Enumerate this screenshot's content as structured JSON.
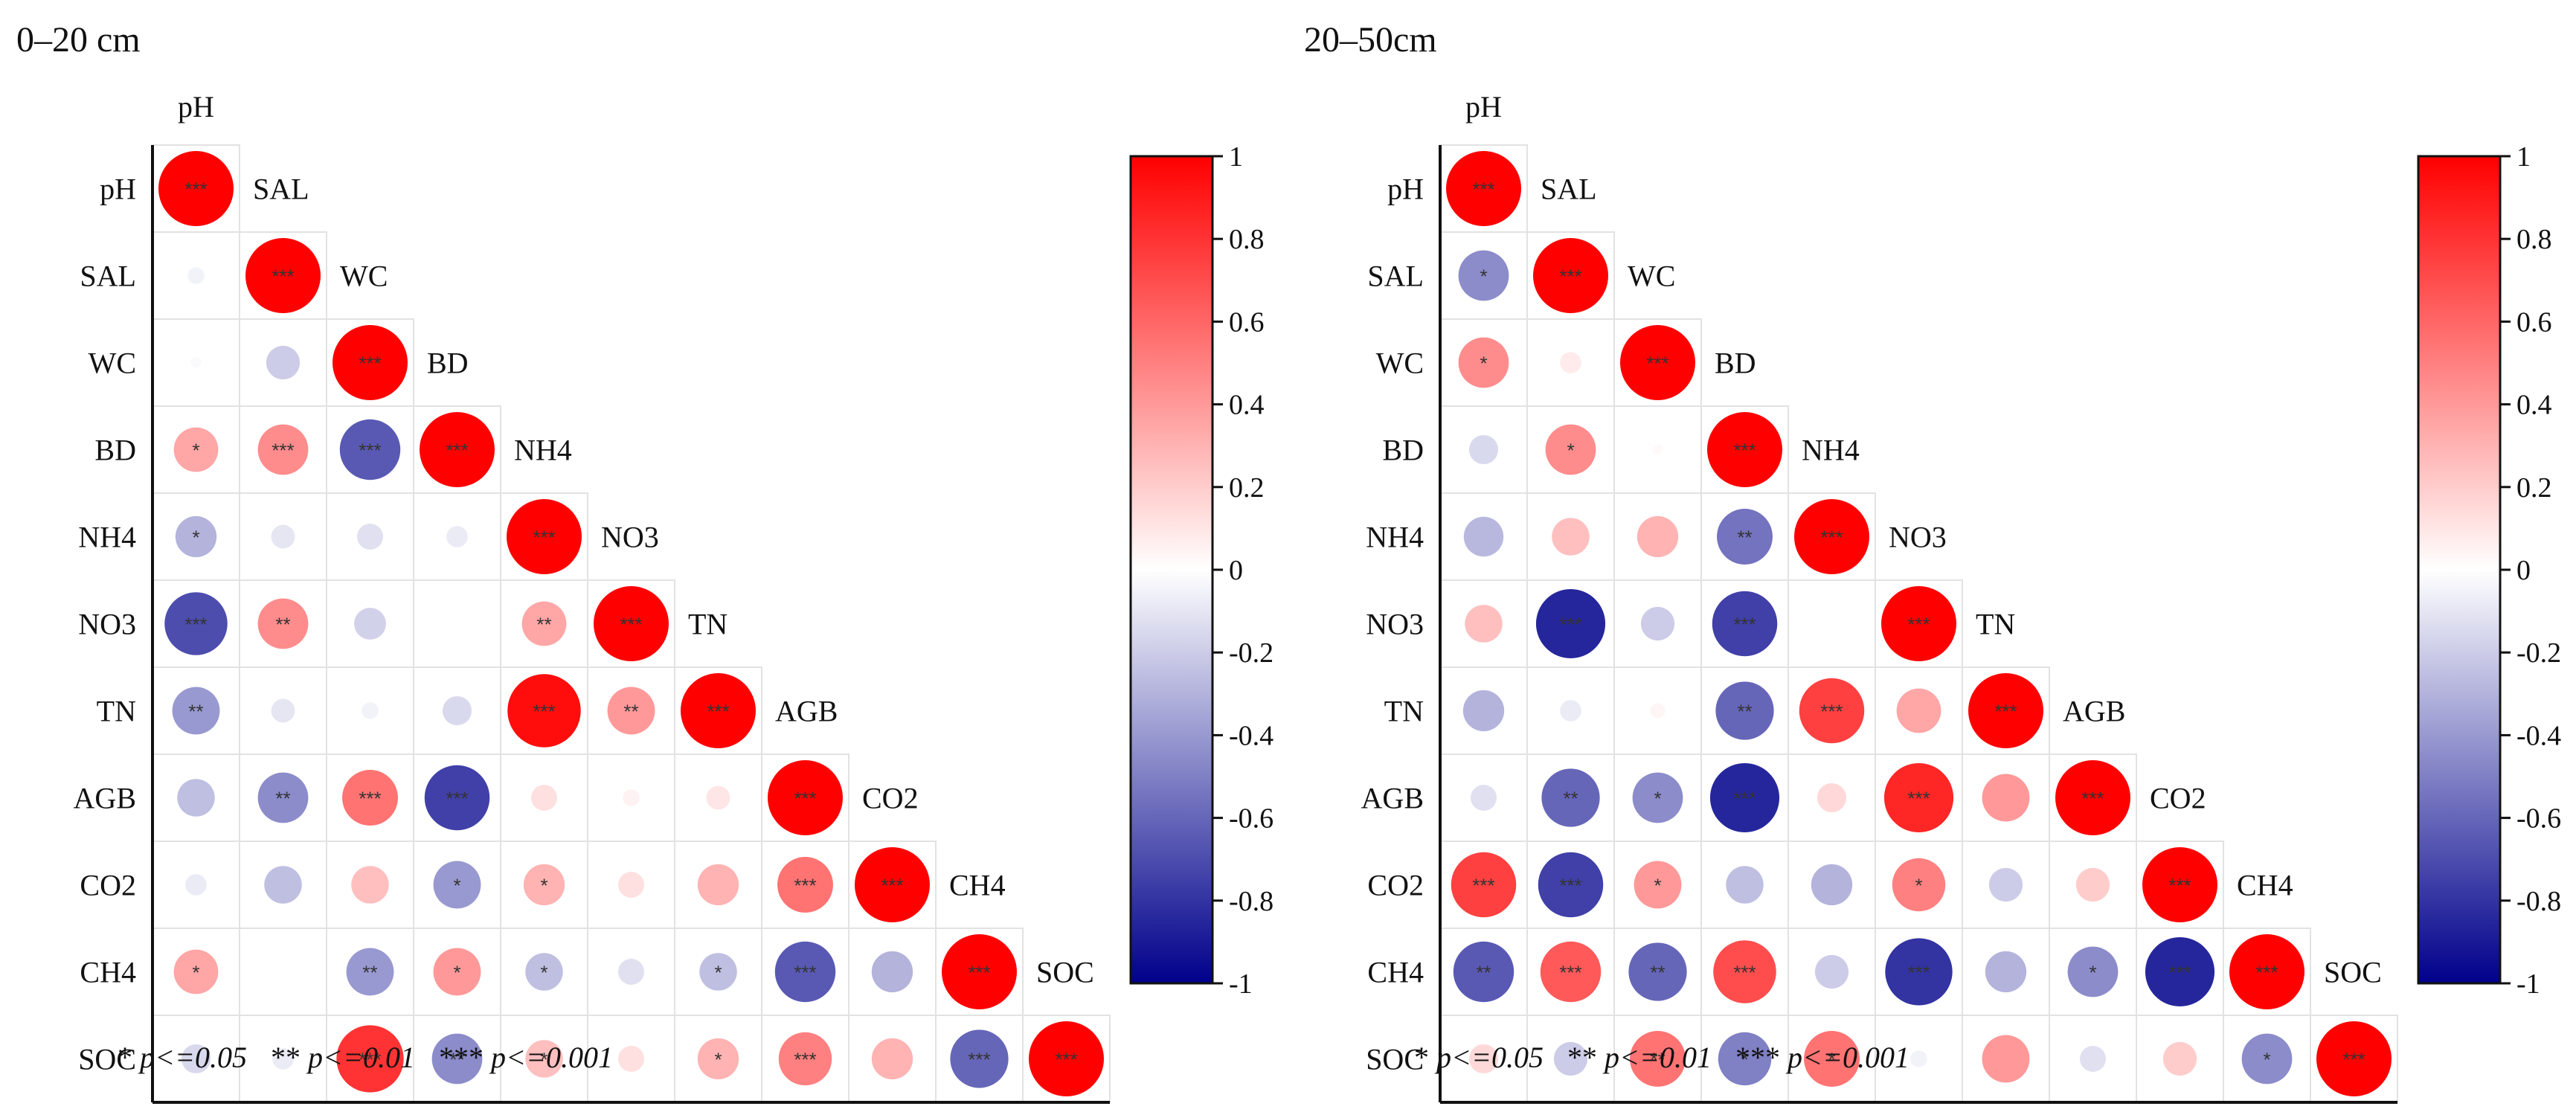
{
  "chart_data": [
    {
      "type": "heatmap",
      "style": "correlation-circles-lower-triangle",
      "title": "0–20 cm",
      "variables": [
        "pH",
        "SAL",
        "WC",
        "BD",
        "NH4",
        "NO3",
        "TN",
        "AGB",
        "CO2",
        "CH4",
        "SOC"
      ],
      "color_scale": {
        "min": -1,
        "max": 1,
        "ticks": [
          "1",
          "0.8",
          "0.6",
          "0.4",
          "0.2",
          "0",
          "-0.2",
          "-0.4",
          "-0.6",
          "-0.8",
          "-1"
        ]
      },
      "matrix": [
        [
          1.0
        ],
        [
          -0.05,
          1.0
        ],
        [
          -0.02,
          -0.2,
          1.0
        ],
        [
          0.35,
          0.45,
          -0.65,
          1.0
        ],
        [
          -0.3,
          -0.1,
          -0.12,
          -0.08,
          1.0
        ],
        [
          -0.7,
          0.45,
          -0.18,
          0.0,
          0.35,
          1.0
        ],
        [
          -0.4,
          -0.1,
          -0.05,
          -0.15,
          0.95,
          0.4,
          1.0
        ],
        [
          -0.25,
          -0.45,
          0.55,
          -0.75,
          0.12,
          0.05,
          0.1,
          1.0
        ],
        [
          -0.08,
          -0.25,
          0.25,
          -0.4,
          0.3,
          0.12,
          0.3,
          0.55,
          1.0
        ],
        [
          0.35,
          0.0,
          -0.4,
          0.4,
          -0.25,
          -0.12,
          -0.25,
          -0.65,
          -0.3,
          1.0
        ],
        [
          -0.15,
          -0.08,
          0.8,
          -0.45,
          0.25,
          0.12,
          0.3,
          0.5,
          0.3,
          -0.6,
          1.0
        ]
      ],
      "significance": [
        [
          "***"
        ],
        [
          "",
          "***"
        ],
        [
          "",
          "",
          "***"
        ],
        [
          "*",
          "***",
          "***",
          "***"
        ],
        [
          "*",
          "",
          "",
          "",
          "***"
        ],
        [
          "***",
          "**",
          "",
          "",
          "**",
          "***"
        ],
        [
          "**",
          "",
          "",
          "",
          "***",
          "**",
          "***"
        ],
        [
          "",
          "**",
          "***",
          "***",
          "",
          "",
          "",
          "***"
        ],
        [
          "",
          "",
          "",
          "*",
          "*",
          "",
          "",
          "***",
          "***"
        ],
        [
          "*",
          "",
          "**",
          "*",
          "*",
          "",
          "*",
          "***",
          "",
          "***"
        ],
        [
          "",
          "",
          "***",
          "**",
          "*",
          "",
          "*",
          "***",
          "",
          "***",
          "***"
        ]
      ],
      "footnote": {
        "s1": "*",
        "t1": "p<=0.05",
        "s2": "**",
        "t2": "p<=0.01",
        "s3": "***",
        "t3": "p<=0.001"
      }
    },
    {
      "type": "heatmap",
      "style": "correlation-circles-lower-triangle",
      "title": "20–50cm",
      "variables": [
        "pH",
        "SAL",
        "WC",
        "BD",
        "NH4",
        "NO3",
        "TN",
        "AGB",
        "CO2",
        "CH4",
        "SOC"
      ],
      "color_scale": {
        "min": -1,
        "max": 1,
        "ticks": [
          "1",
          "0.8",
          "0.6",
          "0.4",
          "0.2",
          "0",
          "-0.2",
          "-0.4",
          "-0.6",
          "-0.8",
          "-1"
        ]
      },
      "matrix": [
        [
          1.0
        ],
        [
          -0.45,
          1.0
        ],
        [
          0.45,
          0.08,
          1.0
        ],
        [
          -0.15,
          0.45,
          0.02,
          1.0
        ],
        [
          -0.28,
          0.25,
          0.3,
          -0.55,
          1.0
        ],
        [
          0.25,
          -0.85,
          -0.2,
          -0.75,
          0.0,
          1.0
        ],
        [
          -0.3,
          -0.08,
          0.04,
          -0.6,
          0.75,
          0.35,
          1.0
        ],
        [
          -0.12,
          -0.6,
          -0.45,
          -0.85,
          0.15,
          0.85,
          0.4,
          1.0
        ],
        [
          0.75,
          -0.75,
          0.4,
          -0.25,
          -0.3,
          0.5,
          -0.2,
          0.2,
          1.0
        ],
        [
          -0.65,
          0.65,
          -0.6,
          0.7,
          -0.2,
          -0.8,
          -0.3,
          -0.45,
          -0.85,
          1.0
        ],
        [
          0.15,
          -0.2,
          0.55,
          -0.5,
          0.55,
          -0.05,
          0.4,
          -0.12,
          0.2,
          -0.45,
          1.0
        ]
      ],
      "significance": [
        [
          "***"
        ],
        [
          "*",
          "***"
        ],
        [
          "*",
          "",
          "***"
        ],
        [
          "",
          "*",
          "",
          "***"
        ],
        [
          "",
          "",
          "",
          "**",
          "***"
        ],
        [
          "",
          "***",
          "",
          "***",
          "",
          "***"
        ],
        [
          "",
          "",
          "",
          "**",
          "***",
          "",
          "***"
        ],
        [
          "",
          "**",
          "*",
          "***",
          "",
          "***",
          "",
          "***"
        ],
        [
          "***",
          "***",
          "*",
          "",
          "",
          "*",
          "",
          "",
          "***"
        ],
        [
          "**",
          "***",
          "**",
          "***",
          "",
          "***",
          "",
          "*",
          "***",
          "***"
        ],
        [
          "",
          "",
          "**",
          "*",
          "*",
          "",
          "",
          "",
          "",
          "*",
          "***"
        ]
      ],
      "footnote": {
        "s1": "*",
        "t1": "p<=0.05",
        "s2": "**",
        "t2": "p<=0.01",
        "s3": "***",
        "t3": "p<=0.001"
      }
    }
  ]
}
